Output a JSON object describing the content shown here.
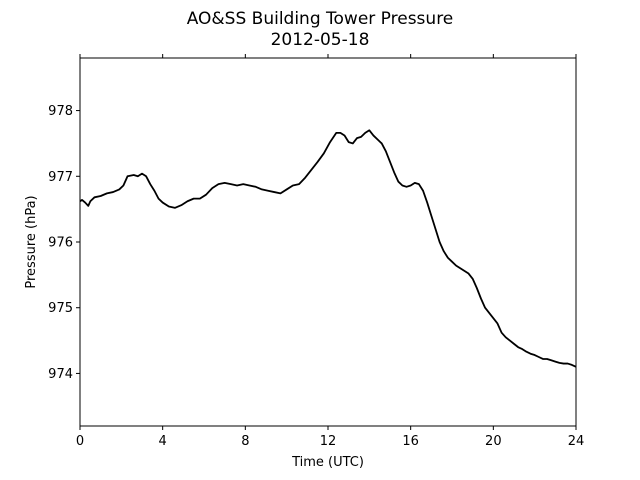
{
  "chart_data": {
    "type": "line",
    "title": "AO&SS Building Tower Pressure",
    "subtitle": "2012-05-18",
    "xlabel": "Time (UTC)",
    "ylabel": "Pressure (hPa)",
    "xlim": [
      0,
      24
    ],
    "ylim": [
      973.2,
      978.8
    ],
    "xticks": [
      0,
      4,
      8,
      12,
      16,
      20,
      24
    ],
    "xtick_labels": [
      "0",
      "4",
      "8",
      "12",
      "16",
      "20",
      "24"
    ],
    "yticks": [
      974,
      975,
      976,
      977,
      978
    ],
    "ytick_labels": [
      "974",
      "975",
      "976",
      "977",
      "978"
    ],
    "grid": false,
    "line_color": "#000000",
    "series": [
      {
        "x": [
          0,
          0.1,
          0.25,
          0.4,
          0.5,
          0.7,
          1.0,
          1.3,
          1.6,
          1.9,
          2.1,
          2.3,
          2.6,
          2.8,
          3.0,
          3.2,
          3.4,
          3.6,
          3.8,
          4.0,
          4.3,
          4.6,
          4.9,
          5.2,
          5.5,
          5.8,
          6.1,
          6.4,
          6.7,
          7.0,
          7.3,
          7.6,
          7.9,
          8.2,
          8.5,
          8.8,
          9.1,
          9.4,
          9.7,
          10.0,
          10.3,
          10.6,
          10.9,
          11.2,
          11.5,
          11.8,
          12.1,
          12.4,
          12.6,
          12.8,
          13.0,
          13.2,
          13.4,
          13.6,
          13.8,
          14.0,
          14.2,
          14.4,
          14.6,
          14.8,
          15.0,
          15.2,
          15.4,
          15.6,
          15.8,
          16.0,
          16.2,
          16.4,
          16.6,
          16.8,
          17.0,
          17.2,
          17.4,
          17.6,
          17.8,
          18.0,
          18.2,
          18.4,
          18.6,
          18.8,
          19.0,
          19.2,
          19.4,
          19.6,
          19.8,
          20.0,
          20.2,
          20.4,
          20.6,
          20.8,
          21.0,
          21.2,
          21.4,
          21.6,
          21.8,
          22.0,
          22.2,
          22.4,
          22.6,
          22.8,
          23.0,
          23.2,
          23.4,
          23.6,
          23.8,
          24.0
        ],
        "y": [
          976.62,
          976.64,
          976.6,
          976.55,
          976.62,
          976.68,
          976.7,
          976.74,
          976.76,
          976.8,
          976.86,
          977.0,
          977.02,
          977.0,
          977.04,
          977.0,
          976.88,
          976.78,
          976.66,
          976.6,
          976.54,
          976.52,
          976.56,
          976.62,
          976.66,
          976.66,
          976.72,
          976.82,
          976.88,
          976.9,
          976.88,
          976.86,
          976.88,
          976.86,
          976.84,
          976.8,
          976.78,
          976.76,
          976.74,
          976.8,
          976.86,
          976.88,
          976.98,
          977.1,
          977.22,
          977.35,
          977.52,
          977.66,
          977.66,
          977.62,
          977.52,
          977.5,
          977.58,
          977.6,
          977.66,
          977.7,
          977.62,
          977.56,
          977.5,
          977.38,
          977.22,
          977.06,
          976.92,
          976.86,
          976.84,
          976.86,
          976.9,
          976.88,
          976.78,
          976.6,
          976.4,
          976.2,
          976.0,
          975.86,
          975.76,
          975.7,
          975.64,
          975.6,
          975.56,
          975.52,
          975.44,
          975.3,
          975.14,
          975.0,
          974.92,
          974.84,
          974.76,
          974.62,
          974.55,
          974.5,
          974.45,
          974.4,
          974.37,
          974.33,
          974.3,
          974.28,
          974.25,
          974.22,
          974.22,
          974.2,
          974.18,
          974.16,
          974.15,
          974.15,
          974.13,
          974.1
        ]
      }
    ]
  }
}
